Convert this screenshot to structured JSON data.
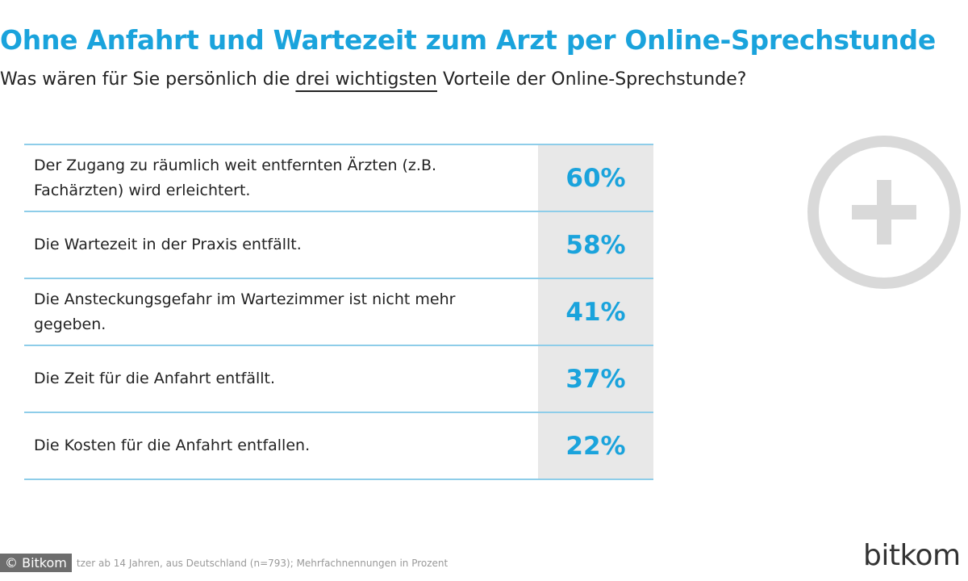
{
  "header": {
    "title": "Ohne Anfahrt und Wartezeit zum Arzt per Online-Sprechstunde",
    "subtitle_before": "Was wären für Sie persönlich die ",
    "subtitle_emphasis": "drei wichtigsten",
    "subtitle_after": " Vorteile der Online-Sprechstunde?"
  },
  "chart_data": {
    "type": "table",
    "title": "Ohne Anfahrt und Wartezeit zum Arzt per Online-Sprechstunde",
    "unit": "%",
    "rows": [
      {
        "label": "Der Zugang zu räumlich weit entfernten Ärzten (z.B. Fachärzten) wird erleichtert.",
        "value": 60,
        "display": "60%"
      },
      {
        "label": "Die Wartezeit in der Praxis entfällt.",
        "value": 58,
        "display": "58%"
      },
      {
        "label": "Die Ansteckungsgefahr im Wartezimmer ist nicht mehr gegeben.",
        "value": 41,
        "display": "41%"
      },
      {
        "label": "Die Zeit für die Anfahrt entfällt.",
        "value": 37,
        "display": "37%"
      },
      {
        "label": "Die Kosten für die Anfahrt entfallen.",
        "value": 22,
        "display": "22%"
      }
    ]
  },
  "footer": {
    "copyright": "© Bitkom",
    "source": "tzer ab 14 Jahren, aus Deutschland (n=793); Mehrfachnennungen in Prozent",
    "brand": "bitkom"
  },
  "colors": {
    "accent": "#1aa3dc",
    "rule": "#8ecde9",
    "value_bg": "#e8e8e8",
    "icon": "#d9d9d9"
  },
  "icons": {
    "decoration": "plus-circle-icon"
  }
}
